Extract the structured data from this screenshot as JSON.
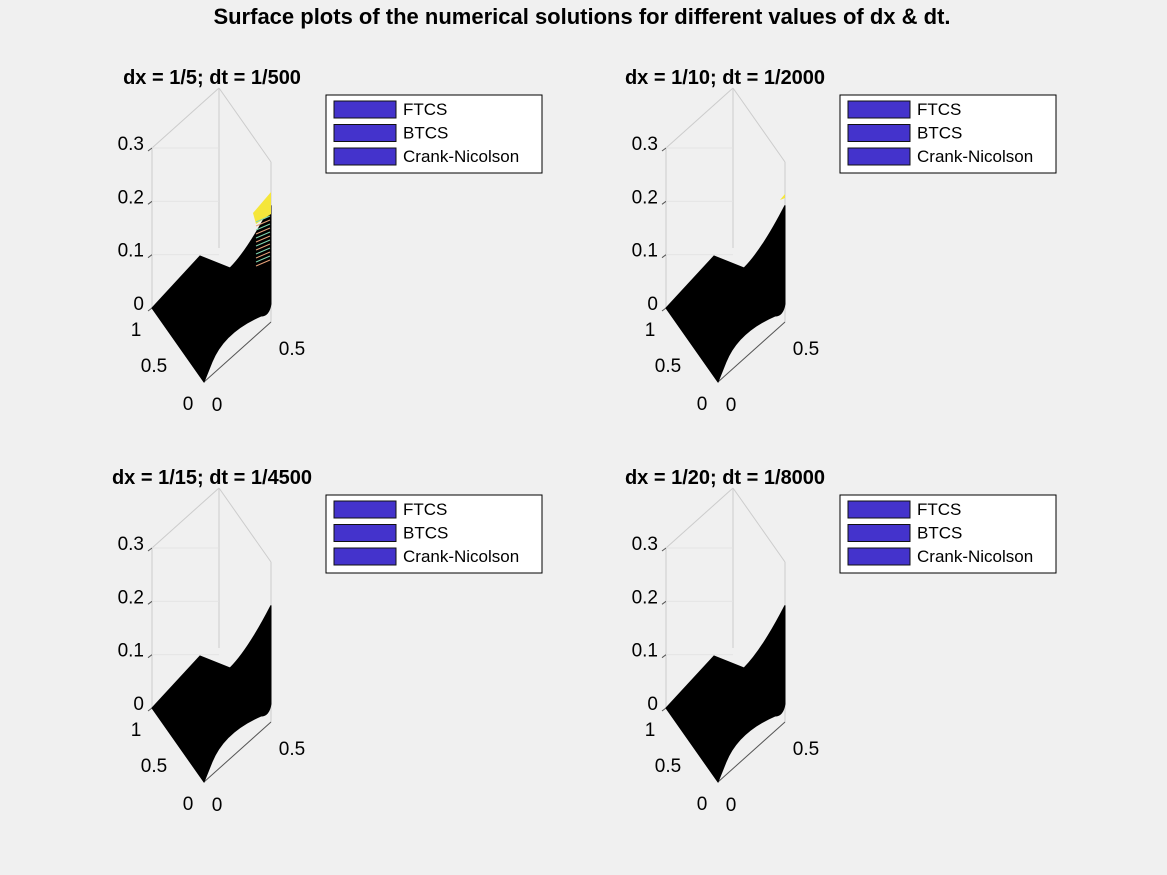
{
  "figure": {
    "title": "Surface plots of the numerical solutions for different values of dx & dt."
  },
  "colors": {
    "background": "#f0f0f0",
    "surface": "#000000",
    "legend_swatch": "#4433cc",
    "highlight": "#f5e63a",
    "axis_line": "#cccccc"
  },
  "chart_data": [
    {
      "type": "surface",
      "title": "dx = 1/5; dt = 1/500",
      "zlim": [
        0,
        0.3
      ],
      "z_ticks": [
        "0",
        "0.1",
        "0.2",
        "0.3"
      ],
      "y_ticks": [
        "1",
        "0.5",
        "0"
      ],
      "x_ticks": [
        "0",
        "0.5"
      ],
      "peak_z": 0.2,
      "grid": true,
      "legend_placement": "top-right",
      "legend": [
        "FTCS",
        "BTCS",
        "Crank-Nicolson"
      ]
    },
    {
      "type": "surface",
      "title": "dx = 1/10; dt = 1/2000",
      "zlim": [
        0,
        0.3
      ],
      "z_ticks": [
        "0",
        "0.1",
        "0.2",
        "0.3"
      ],
      "y_ticks": [
        "1",
        "0.5",
        "0"
      ],
      "x_ticks": [
        "0",
        "0.5"
      ],
      "peak_z": 0.2,
      "grid": true,
      "legend_placement": "top-right",
      "legend": [
        "FTCS",
        "BTCS",
        "Crank-Nicolson"
      ]
    },
    {
      "type": "surface",
      "title": "dx = 1/15; dt = 1/4500",
      "zlim": [
        0,
        0.3
      ],
      "z_ticks": [
        "0",
        "0.1",
        "0.2",
        "0.3"
      ],
      "y_ticks": [
        "1",
        "0.5",
        "0"
      ],
      "x_ticks": [
        "0",
        "0.5"
      ],
      "peak_z": 0.2,
      "grid": true,
      "legend_placement": "top-right",
      "legend": [
        "FTCS",
        "BTCS",
        "Crank-Nicolson"
      ]
    },
    {
      "type": "surface",
      "title": "dx = 1/20; dt = 1/8000",
      "zlim": [
        0,
        0.3
      ],
      "z_ticks": [
        "0",
        "0.1",
        "0.2",
        "0.3"
      ],
      "y_ticks": [
        "1",
        "0.5",
        "0"
      ],
      "x_ticks": [
        "0",
        "0.5"
      ],
      "peak_z": 0.2,
      "grid": true,
      "legend_placement": "top-right",
      "legend": [
        "FTCS",
        "BTCS",
        "Crank-Nicolson"
      ]
    }
  ]
}
